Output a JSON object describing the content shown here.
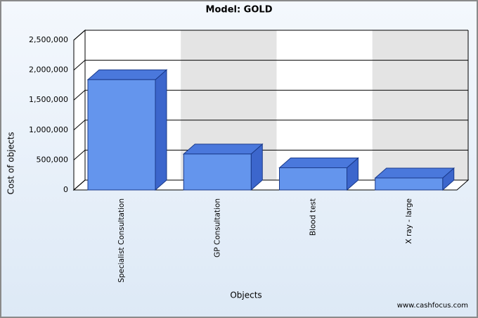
{
  "chart_data": {
    "type": "bar",
    "title": "Model: GOLD",
    "x_label": "Objects",
    "y_label": "Cost of objects",
    "categories": [
      "Specialist Consultation",
      "GP Consultation",
      "Blood test",
      "X ray - large"
    ],
    "values": [
      1840000,
      600000,
      370000,
      200000
    ],
    "color": "#6495ed",
    "ylim": [
      0,
      2500000
    ],
    "yticks": [
      0,
      {
        "value": 500000,
        "label": "500,000"
      },
      {
        "value": 1000000,
        "label": "1,000,000"
      },
      {
        "value": 1500000,
        "label": "1,500,000"
      },
      {
        "value": 2000000,
        "label": "2,000,000"
      },
      {
        "value": 2500000,
        "label": "2,500,000"
      }
    ],
    "grid": true,
    "source": "www.cashfocus.com"
  }
}
